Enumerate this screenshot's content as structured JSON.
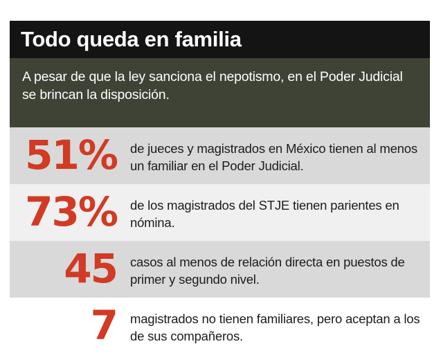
{
  "header": {
    "title": "Todo queda en familia",
    "subtitle": "A pesar de que la ley sanciona el nepotismo, en el Poder Judicial se brincan la disposición."
  },
  "stats": [
    {
      "number": "51%",
      "text": "de jueces y magistrados en México tienen al menos un familiar en el Poder Judicial."
    },
    {
      "number": "73%",
      "text": "de los magistrados del STJE tienen parientes en nómina."
    },
    {
      "number": "45",
      "text": "casos al menos de relación directa en puestos de primer y segundo nivel."
    },
    {
      "number": "7",
      "text": "magistrados no tienen familiares, pero aceptan a los de sus compañeros."
    }
  ],
  "colors": {
    "title_bg": "#141414",
    "subtitle_bg": "#3e4336",
    "accent_red": "#d13a24",
    "row_gray": "#d9d9d9",
    "row_light": "#f0f0f0"
  }
}
